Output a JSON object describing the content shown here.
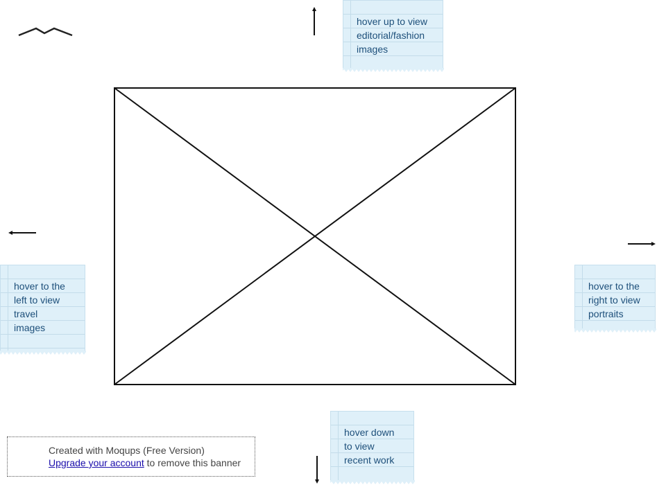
{
  "notes": {
    "top": {
      "lines": [
        "hover up to view",
        "editorial/fashion",
        "images"
      ]
    },
    "left": {
      "lines": [
        "hover to the",
        "left to view",
        "travel",
        "images"
      ]
    },
    "right": {
      "lines": [
        "hover to the",
        "right to view",
        "portraits"
      ]
    },
    "bottom": {
      "lines": [
        "hover down",
        "to view",
        "recent work"
      ]
    }
  },
  "banner": {
    "created_text": "Created with Moqups (Free Version)",
    "upgrade_link": "Upgrade your account",
    "remove_text": " to remove this banner"
  },
  "icons": {
    "logo": "mountain-logo-icon",
    "arrow_up": "arrow-up-icon",
    "arrow_left": "arrow-left-icon",
    "arrow_right": "arrow-right-icon",
    "arrow_down": "arrow-down-icon",
    "image_placeholder": "image-placeholder-icon"
  },
  "colors": {
    "note_bg": "#dff0f9",
    "note_text": "#1d4f7a",
    "link": "#1a0dab",
    "stroke": "#111111"
  }
}
